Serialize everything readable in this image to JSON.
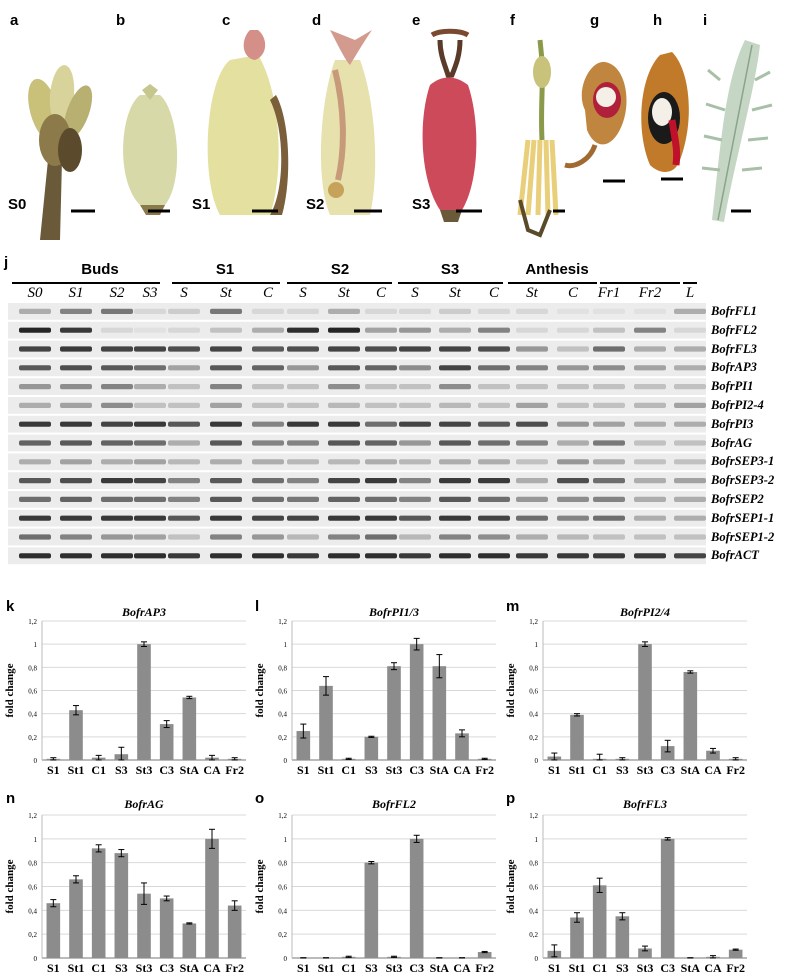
{
  "photos": {
    "letters": [
      "a",
      "b",
      "c",
      "d",
      "e",
      "f",
      "g",
      "h",
      "i"
    ],
    "stage_tags": {
      "a": "S0",
      "c": "S1",
      "d": "S2",
      "e": "S3"
    }
  },
  "gel": {
    "panel_letter": "j",
    "groups": [
      "Buds",
      "S1",
      "S2",
      "S3",
      "Anthesis"
    ],
    "lanes": [
      "S0",
      "S1",
      "S2",
      "S3",
      "S",
      "St",
      "C",
      "S",
      "St",
      "C",
      "S",
      "St",
      "C",
      "St",
      "C",
      "Fr1",
      "Fr2",
      "L"
    ],
    "genes": [
      "BofrFL1",
      "BofrFL2",
      "BofrFL3",
      "BofrAP3",
      "BofrPI1",
      "BofrPI2-4",
      "BofrPI3",
      "BofrAG",
      "BofrSEP3-1",
      "BofrSEP3-2",
      "BofrSEP2",
      "BofrSEP1-1",
      "BofrSEP1-2",
      "BofrACT"
    ]
  },
  "colors": {
    "bar": "#8c8c8c",
    "grid": "#d9d9d9",
    "gel_bg": "#ececec",
    "band": "#1a1a1a"
  },
  "chart_data": [
    {
      "letter": "k",
      "type": "bar",
      "title": "BofrAP3",
      "ylabel": "fold change",
      "ylim": [
        0,
        1.2
      ],
      "yticks": [
        "0",
        "0,2",
        "0,4",
        "0,6",
        "0,8",
        "1",
        "1,2"
      ],
      "grid": true,
      "categories": [
        "S1",
        "St1",
        "C1",
        "S3",
        "St3",
        "C3",
        "StA",
        "CA",
        "Fr2"
      ],
      "values": [
        0.01,
        0.43,
        0.02,
        0.05,
        1.0,
        0.31,
        0.54,
        0.02,
        0.01
      ],
      "errors": [
        0.01,
        0.04,
        0.02,
        0.06,
        0.02,
        0.03,
        0.01,
        0.02,
        0.01
      ]
    },
    {
      "letter": "l",
      "type": "bar",
      "title": "BofrPI1/3",
      "ylabel": "fold change",
      "ylim": [
        0,
        1.2
      ],
      "yticks": [
        "0",
        "0,2",
        "0,4",
        "0,6",
        "0,8",
        "1",
        "1,2"
      ],
      "grid": true,
      "categories": [
        "S1",
        "St1",
        "C1",
        "S3",
        "St3",
        "C3",
        "StA",
        "CA",
        "Fr2"
      ],
      "values": [
        0.25,
        0.64,
        0.01,
        0.2,
        0.81,
        1.0,
        0.81,
        0.23,
        0.01
      ],
      "errors": [
        0.06,
        0.08,
        0.005,
        0.005,
        0.03,
        0.05,
        0.1,
        0.03,
        0.005
      ]
    },
    {
      "letter": "m",
      "type": "bar",
      "title": "BofrPI2/4",
      "ylabel": "fold change",
      "ylim": [
        0,
        1.2
      ],
      "yticks": [
        "0",
        "0,2",
        "0,4",
        "0,6",
        "0,8",
        "1",
        "1,2"
      ],
      "grid": true,
      "categories": [
        "S1",
        "St1",
        "C1",
        "S3",
        "St3",
        "C3",
        "StA",
        "CA",
        "Fr2"
      ],
      "values": [
        0.03,
        0.39,
        0.01,
        0.01,
        1.0,
        0.12,
        0.76,
        0.08,
        0.01
      ],
      "errors": [
        0.03,
        0.01,
        0.04,
        0.01,
        0.02,
        0.05,
        0.01,
        0.02,
        0.01
      ]
    },
    {
      "letter": "n",
      "type": "bar",
      "title": "BofrAG",
      "ylabel": "fold change",
      "ylim": [
        0,
        1.2
      ],
      "yticks": [
        "0",
        "0,2",
        "0,4",
        "0,6",
        "0,8",
        "1",
        "1,2"
      ],
      "grid": true,
      "categories": [
        "S1",
        "St1",
        "C1",
        "S3",
        "St3",
        "C3",
        "StA",
        "CA",
        "Fr2"
      ],
      "values": [
        0.46,
        0.66,
        0.92,
        0.88,
        0.54,
        0.5,
        0.29,
        1.0,
        0.44
      ],
      "errors": [
        0.03,
        0.03,
        0.03,
        0.03,
        0.09,
        0.02,
        0.005,
        0.08,
        0.04
      ]
    },
    {
      "letter": "o",
      "type": "bar",
      "title": "BofrFL2",
      "ylabel": "fold change",
      "ylim": [
        0,
        1.2
      ],
      "yticks": [
        "0",
        "0,2",
        "0,4",
        "0,6",
        "0,8",
        "1",
        "1,2"
      ],
      "grid": true,
      "categories": [
        "S1",
        "St1",
        "C1",
        "S3",
        "St3",
        "C3",
        "StA",
        "CA",
        "Fr2"
      ],
      "values": [
        0.0,
        0.0,
        0.01,
        0.8,
        0.01,
        1.0,
        0.0,
        0.0,
        0.05
      ],
      "errors": [
        0.003,
        0.003,
        0.005,
        0.01,
        0.005,
        0.03,
        0.003,
        0.003,
        0.005
      ]
    },
    {
      "letter": "p",
      "type": "bar",
      "title": "BofrFL3",
      "ylabel": "fold change",
      "ylim": [
        0,
        1.2
      ],
      "yticks": [
        "0",
        "0,2",
        "0,4",
        "0,6",
        "0,8",
        "1",
        "1,2"
      ],
      "grid": true,
      "categories": [
        "S1",
        "St1",
        "C1",
        "S3",
        "St3",
        "C3",
        "StA",
        "CA",
        "Fr2"
      ],
      "values": [
        0.06,
        0.34,
        0.61,
        0.35,
        0.08,
        1.0,
        0.0,
        0.01,
        0.07
      ],
      "errors": [
        0.05,
        0.04,
        0.06,
        0.03,
        0.02,
        0.01,
        0.003,
        0.01,
        0.005
      ]
    }
  ]
}
